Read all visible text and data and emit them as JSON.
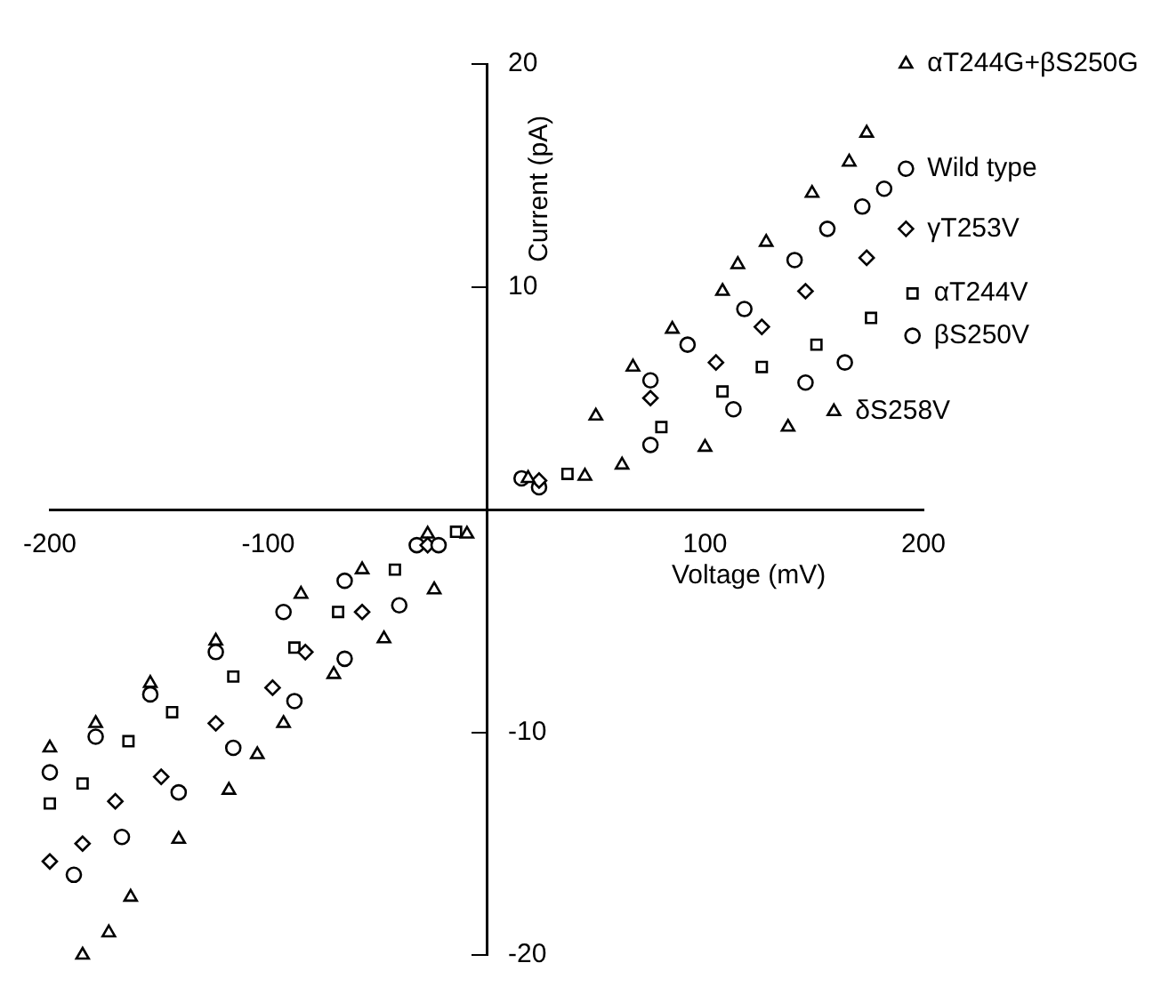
{
  "chart_data": {
    "type": "scatter",
    "xlabel": "Voltage (mV)",
    "ylabel": "Current (pA)",
    "xlim": [
      -200,
      200
    ],
    "xticks": [
      -200,
      -100,
      100,
      200
    ],
    "ylim": [
      -20,
      20
    ],
    "yticks": [
      -20,
      -10,
      10,
      20
    ],
    "grid": false,
    "legend": false,
    "series": [
      {
        "name": "αT244G+βS250G",
        "color": "#000000",
        "marker": "triangle",
        "x": [
          -185,
          -173,
          -163,
          -141,
          -118,
          -105,
          -93,
          -70,
          -47,
          -24,
          -9,
          19,
          50,
          67,
          85,
          108,
          115,
          128,
          149,
          166,
          174,
          192
        ],
        "values": [
          -20,
          -19,
          -17.4,
          -14.8,
          -12.6,
          -11,
          -9.6,
          -7.4,
          -5.8,
          -3.6,
          -1.1,
          1.4,
          4.2,
          6.4,
          8.1,
          9.8,
          11,
          12,
          14.2,
          15.6,
          16.9,
          20
        ]
      },
      {
        "name": "Wild type",
        "color": "#000000",
        "marker": "circle",
        "x": [
          -189,
          -167,
          -141,
          -116,
          -88,
          -65,
          -40,
          -22,
          16,
          75,
          92,
          118,
          141,
          156,
          172,
          182,
          192
        ],
        "values": [
          -16.4,
          -14.7,
          -12.7,
          -10.7,
          -8.6,
          -6.7,
          -4.3,
          -1.6,
          1.4,
          5.8,
          7.4,
          9,
          11.2,
          12.6,
          13.6,
          14.4,
          15.3
        ]
      },
      {
        "name": "γT253V",
        "color": "#000000",
        "marker": "diamond",
        "x": [
          -200,
          -185,
          -170,
          -149,
          -124,
          -98,
          -83,
          -57,
          -27,
          24,
          75,
          105,
          126,
          146,
          174,
          192
        ],
        "values": [
          -15.8,
          -15,
          -13.1,
          -12,
          -9.6,
          -8,
          -6.4,
          -4.6,
          -1.6,
          1.3,
          5,
          6.6,
          8.2,
          9.8,
          11.3,
          12.6
        ]
      },
      {
        "name": "αT244V",
        "color": "#000000",
        "marker": "square",
        "x": [
          -200,
          -185,
          -164,
          -144,
          -116,
          -88,
          -68,
          -42,
          -14,
          37,
          80,
          108,
          126,
          151,
          176,
          195
        ],
        "values": [
          -13.2,
          -12.3,
          -10.4,
          -9.1,
          -7.5,
          -6.2,
          -4.6,
          -2.7,
          -1,
          1.6,
          3.7,
          5.3,
          6.4,
          7.4,
          8.6,
          9.7
        ]
      },
      {
        "name": "βS250V",
        "color": "#000000",
        "marker": "circle",
        "x": [
          -200,
          -179,
          -154,
          -124,
          -93,
          -65,
          -32,
          24,
          75,
          113,
          146,
          164,
          195
        ],
        "values": [
          -11.8,
          -10.2,
          -8.3,
          -6.4,
          -4.6,
          -3.2,
          -1.6,
          1,
          2.9,
          4.5,
          5.7,
          6.6,
          7.8
        ]
      },
      {
        "name": "δS258V",
        "color": "#000000",
        "marker": "triangle",
        "x": [
          -200,
          -179,
          -154,
          -124,
          -85,
          -57,
          -27,
          45,
          62,
          100,
          138,
          159
        ],
        "values": [
          -10.7,
          -9.6,
          -7.8,
          -5.9,
          -3.8,
          -2.7,
          -1.1,
          1.5,
          2,
          2.8,
          3.7,
          4.4
        ]
      }
    ]
  }
}
